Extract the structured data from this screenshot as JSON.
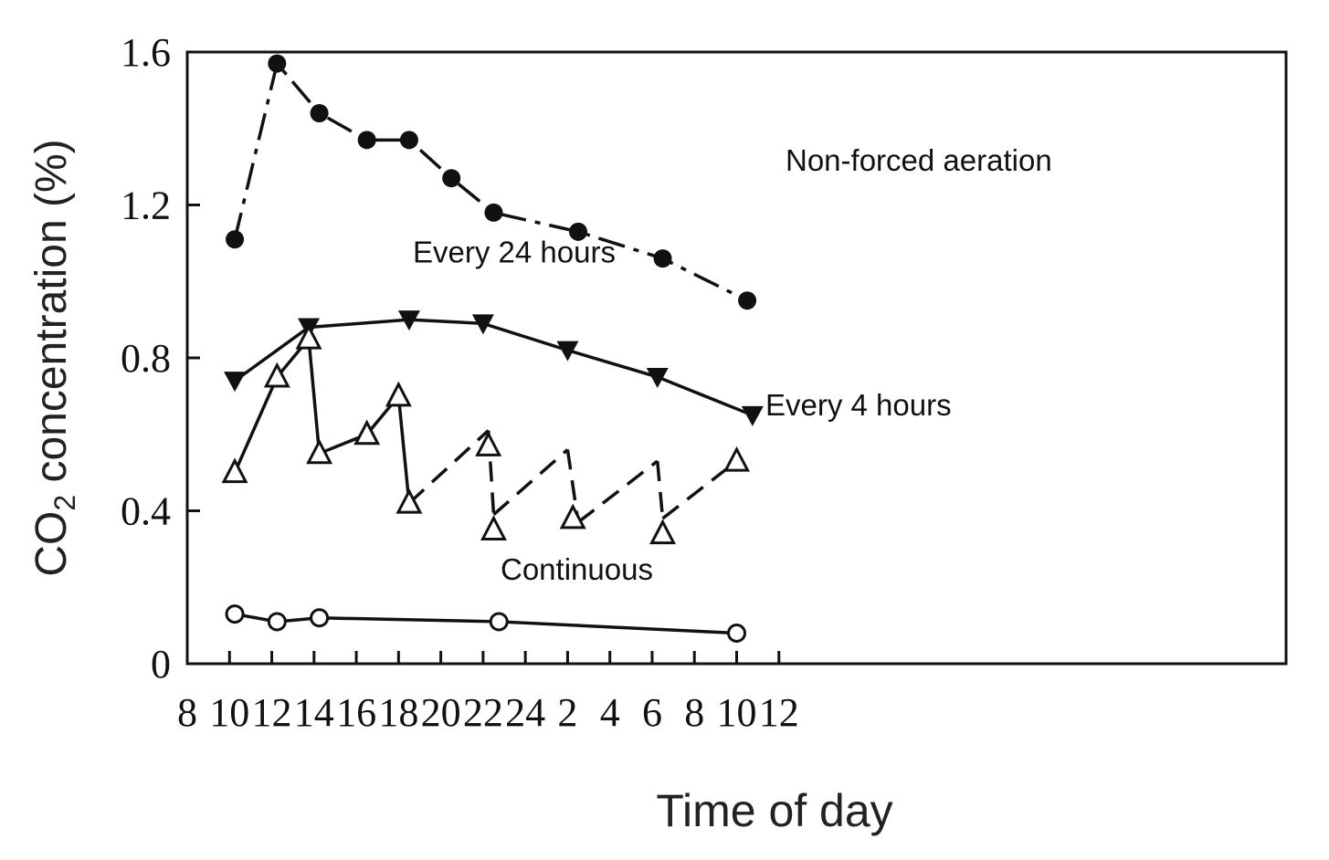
{
  "chart_data": {
    "type": "line",
    "xlabel": "Time of day",
    "ylabel_main": "CO",
    "ylabel_sub": "2",
    "ylabel_rest": " concentration (%)",
    "ylim": [
      0,
      1.6
    ],
    "x_tick_labels": [
      "8",
      "10",
      "12",
      "14",
      "16",
      "18",
      "20",
      "22",
      "24",
      "2",
      "4",
      "6",
      "8",
      "10",
      "12"
    ],
    "x_range_hours_from_0800": [
      0,
      52
    ],
    "x_tick_step_hours": 2,
    "y_ticks": [
      {
        "value": 0,
        "label": "0"
      },
      {
        "value": 0.4,
        "label": "0.4"
      },
      {
        "value": 0.8,
        "label": "0.8"
      },
      {
        "value": 1.2,
        "label": "1.2"
      },
      {
        "value": 1.6,
        "label": "1.6"
      }
    ],
    "grid": false,
    "series": [
      {
        "name": "Non-forced aeration",
        "marker": "filled-circle",
        "line_style": "dash-dot",
        "points": [
          {
            "x": "10:15",
            "y": 1.11
          },
          {
            "x": "12:15",
            "y": 1.57
          },
          {
            "x": "14:15",
            "y": 1.44
          },
          {
            "x": "16:30",
            "y": 1.37
          },
          {
            "x": "18:30",
            "y": 1.37
          },
          {
            "x": "20:30",
            "y": 1.27
          },
          {
            "x": "22:30",
            "y": 1.18
          },
          {
            "x": "02:30",
            "y": 1.13
          },
          {
            "x": "06:30",
            "y": 1.06
          },
          {
            "x": "10:30",
            "y": 0.95
          }
        ]
      },
      {
        "name": "Every 24 hours",
        "marker": "filled-down-triangle",
        "line_style": "solid",
        "points": [
          {
            "x": "10:15",
            "y": 0.74
          },
          {
            "x": "13:45",
            "y": 0.88
          },
          {
            "x": "18:30",
            "y": 0.9
          },
          {
            "x": "22:00",
            "y": 0.89
          },
          {
            "x": "02:00",
            "y": 0.82
          },
          {
            "x": "06:15",
            "y": 0.75
          },
          {
            "x": "10:45",
            "y": 0.65
          }
        ]
      },
      {
        "name": "Every 4 hours",
        "marker": "open-triangle",
        "points": [
          {
            "x": "10:15",
            "y": 0.5
          },
          {
            "x": "12:15",
            "y": 0.75
          },
          {
            "x": "13:45",
            "y": 0.85
          },
          {
            "x": "14:15",
            "y": 0.55
          },
          {
            "x": "16:30",
            "y": 0.6
          },
          {
            "x": "18:00",
            "y": 0.7
          },
          {
            "x": "18:30",
            "y": 0.42
          },
          {
            "x": "22:15",
            "y": 0.57
          },
          {
            "x": "22:30",
            "y": 0.35
          },
          {
            "x": "02:15",
            "y": 0.38
          },
          {
            "x": "06:30",
            "y": 0.34
          },
          {
            "x": "10:00",
            "y": 0.53
          }
        ],
        "path": [
          {
            "x": "10:15",
            "y": 0.5,
            "style": "solid"
          },
          {
            "x": "12:15",
            "y": 0.75,
            "style": "solid"
          },
          {
            "x": "13:45",
            "y": 0.85,
            "style": "solid"
          },
          {
            "x": "14:15",
            "y": 0.55,
            "style": "solid"
          },
          {
            "x": "16:30",
            "y": 0.6,
            "style": "solid"
          },
          {
            "x": "18:00",
            "y": 0.7,
            "style": "solid"
          },
          {
            "x": "18:30",
            "y": 0.42,
            "style": "solid"
          },
          {
            "x": "22:15",
            "y": 0.61,
            "style": "dashed"
          },
          {
            "x": "22:30",
            "y": 0.39,
            "style": "dashed"
          },
          {
            "x": "02:00",
            "y": 0.56,
            "style": "dashed"
          },
          {
            "x": "02:30",
            "y": 0.37,
            "style": "dashed"
          },
          {
            "x": "06:15",
            "y": 0.53,
            "style": "dashed"
          },
          {
            "x": "06:30",
            "y": 0.38,
            "style": "dashed"
          },
          {
            "x": "10:00",
            "y": 0.53,
            "style": "dashed"
          }
        ]
      },
      {
        "name": "Continuous",
        "marker": "open-circle",
        "line_style": "solid",
        "points": [
          {
            "x": "10:15",
            "y": 0.13
          },
          {
            "x": "12:15",
            "y": 0.11
          },
          {
            "x": "14:15",
            "y": 0.12
          },
          {
            "x": "22:45",
            "y": 0.11
          },
          {
            "x": "10:00",
            "y": 0.08
          }
        ]
      }
    ],
    "annotations": [
      {
        "text": "Non-forced aeration",
        "anchor_x": "22:45",
        "anchor_y": 1.29
      },
      {
        "text": "Every 24 hours",
        "anchor_x": "13:45",
        "anchor_y": 1.05
      },
      {
        "text": "Every 4 hours",
        "anchor_x": "22:15",
        "anchor_y": 0.65
      },
      {
        "text": "Continuous",
        "anchor_x": "14:15",
        "anchor_y": 0.22
      }
    ]
  }
}
